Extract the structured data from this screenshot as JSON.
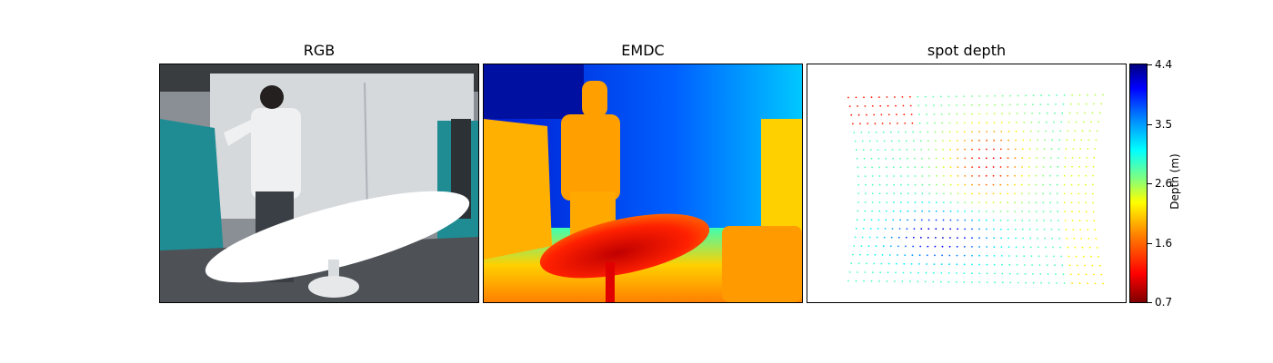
{
  "panels": [
    {
      "title": "RGB"
    },
    {
      "title": "EMDC"
    },
    {
      "title": "spot depth"
    }
  ],
  "colorbar": {
    "label": "Depth (m)",
    "ticks": [
      "4.4",
      "3.5",
      "2.6",
      "1.6",
      "0.7"
    ],
    "min": 0.7,
    "max": 4.4,
    "colormap": "jet"
  }
}
